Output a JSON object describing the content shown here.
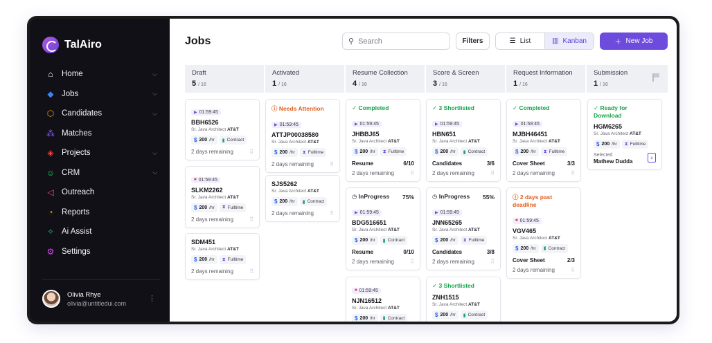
{
  "app": {
    "name": "TalAiro"
  },
  "sidebar": {
    "items": [
      {
        "label": "Home",
        "icon": "home-icon",
        "glyph": "⌂",
        "color": "#ffffff",
        "chevron": true
      },
      {
        "label": "Jobs",
        "icon": "diamond-icon",
        "glyph": "◆",
        "color": "#3b82f6",
        "chevron": true
      },
      {
        "label": "Candidates",
        "icon": "box-icon",
        "glyph": "⬡",
        "color": "#f59e0b",
        "chevron": true
      },
      {
        "label": "Matches",
        "icon": "matches-icon",
        "glyph": "⁂",
        "color": "#8b5cf6",
        "chevron": false
      },
      {
        "label": "Projects",
        "icon": "projects-icon",
        "glyph": "◈",
        "color": "#ef4444",
        "chevron": true
      },
      {
        "label": "CRM",
        "icon": "people-icon",
        "glyph": "☺",
        "color": "#22c55e",
        "chevron": true
      },
      {
        "label": "Outreach",
        "icon": "megaphone-icon",
        "glyph": "◁",
        "color": "#ec4899",
        "chevron": false
      },
      {
        "label": "Reports",
        "icon": "pie-chart-icon",
        "glyph": "◔",
        "color": "#f59e0b",
        "chevron": false
      },
      {
        "label": "Ai Assist",
        "icon": "sparkle-icon",
        "glyph": "✧",
        "color": "#14b8a6",
        "chevron": false
      },
      {
        "label": "Settings",
        "icon": "settings-icon",
        "glyph": "⚙",
        "color": "#d946ef",
        "chevron": false
      }
    ],
    "user": {
      "name": "Olivia Rhye",
      "email": "olivia@untitledui.com"
    }
  },
  "header": {
    "title": "Jobs",
    "search_placeholder": "Search",
    "filters_label": "Filters",
    "list_label": "List",
    "kanban_label": "Kanban",
    "new_job_label": "New Job"
  },
  "columns": [
    {
      "name": "Draft",
      "count": "5",
      "total": "/ 16"
    },
    {
      "name": "Activated",
      "count": "1",
      "total": "/ 16"
    },
    {
      "name": "Resume Collection",
      "count": "4",
      "total": "/ 16"
    },
    {
      "name": "Score & Screen",
      "count": "3",
      "total": "/ 16"
    },
    {
      "name": "Request Information",
      "count": "1",
      "total": "/ 16"
    },
    {
      "name": "Submission",
      "count": "1",
      "total": "/ 16"
    }
  ],
  "common": {
    "role": "Sr. Java Architect",
    "company": "AT&T",
    "rate": "200",
    "rate_unit": "/hr",
    "remaining": "2 days remaining",
    "timer": "01:59:45"
  },
  "cards": {
    "c1": {
      "id": "BBH6526",
      "type": "Contract"
    },
    "c2": {
      "id": "SLKM2262",
      "type": "Fulltime"
    },
    "c3": {
      "id": "SDM451",
      "type": "Fulltime"
    },
    "c4": {
      "status": "Needs Attention",
      "id": "ATTJP00038580",
      "type": "Fulltime"
    },
    "c5": {
      "id": "SJS5262",
      "type": "Contract"
    },
    "c6": {
      "status": "Completed",
      "id": "JHBBJ65",
      "type": "Fulltime",
      "meta_label": "Resume",
      "meta_value": "6/10"
    },
    "c7": {
      "status": "InProgress",
      "percent": "75%",
      "id": "BDG516651",
      "type": "Contract",
      "meta_label": "Resume",
      "meta_value": "0/10"
    },
    "c8": {
      "id": "NJN16512",
      "type": "Contract"
    },
    "c9": {
      "status": "3 Shortlisted",
      "id": "HBN651",
      "type": "Contract",
      "meta_label": "Candidates",
      "meta_value": "3/6"
    },
    "c10": {
      "status": "InProgress",
      "percent": "55%",
      "id": "JNN65265",
      "type": "Fulltime",
      "meta_label": "Candidates",
      "meta_value": "3/8"
    },
    "c11": {
      "status": "3 Shortlisted",
      "id": "ZNH1515",
      "type": "Contract"
    },
    "c12": {
      "status": "Completed",
      "id": "MJBH46451",
      "type": "Fulltime",
      "meta_label": "Cover Sheet",
      "meta_value": "3/3"
    },
    "c13": {
      "status": "2 days past deadline",
      "id": "VGV465",
      "type": "Contract",
      "meta_label": "Cover Sheet",
      "meta_value": "2/3"
    },
    "c14": {
      "status": "Ready for Download",
      "id": "HGM6265",
      "type": "Fulltime",
      "selected_label": "Selected",
      "selected_name": "Mathew Dudda"
    }
  }
}
